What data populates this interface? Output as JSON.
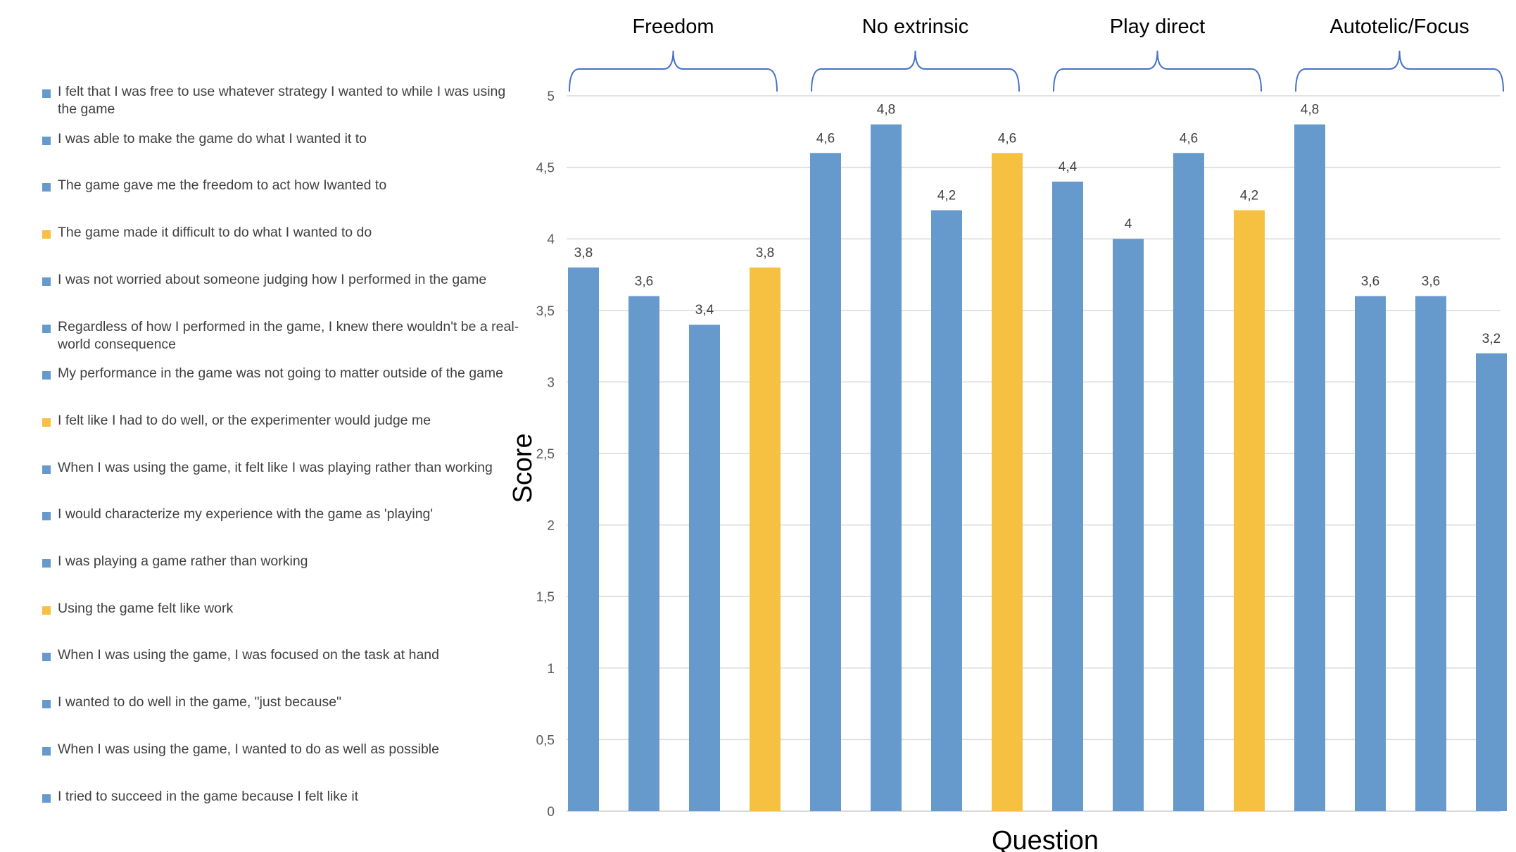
{
  "chart_data": {
    "type": "bar",
    "xlabel": "Question",
    "ylabel": "Score",
    "ylim": [
      0,
      5
    ],
    "yticks": [
      "0",
      "0,5",
      "1",
      "1,5",
      "2",
      "2,5",
      "3",
      "3,5",
      "4",
      "4,5",
      "5"
    ],
    "grid": true,
    "legend_position": "left",
    "colors": {
      "positive": "#6699CC",
      "negative": "#F6C040"
    },
    "groups": [
      {
        "label": "Freedom",
        "start": 0,
        "end": 3
      },
      {
        "label": "No extrinsic",
        "start": 4,
        "end": 7
      },
      {
        "label": "Play direct",
        "start": 8,
        "end": 11
      },
      {
        "label": "Autotelic/Focus",
        "start": 12,
        "end": 15
      }
    ],
    "items": [
      {
        "label": "I felt that I was free to use whatever strategy I wanted to while I was using the game",
        "value": 3.8,
        "value_label": "3,8",
        "color": "#6699CC"
      },
      {
        "label": "I was able to make the game do what I wanted it to",
        "value": 3.6,
        "value_label": "3,6",
        "color": "#6699CC"
      },
      {
        "label": "The game gave me the freedom to act how Iwanted to",
        "value": 3.4,
        "value_label": "3,4",
        "color": "#6699CC"
      },
      {
        "label": "The game made it difficult to do what I wanted to do",
        "value": 3.8,
        "value_label": "3,8",
        "color": "#F6C040"
      },
      {
        "label": "I was not worried about someone judging how I performed in the game",
        "value": 4.6,
        "value_label": "4,6",
        "color": "#6699CC"
      },
      {
        "label": "Regardless of how I performed in the game, I knew there wouldn't be a real-world consequence",
        "value": 4.8,
        "value_label": "4,8",
        "color": "#6699CC"
      },
      {
        "label": "My performance in the game was not going to matter outside of the game",
        "value": 4.2,
        "value_label": "4,2",
        "color": "#6699CC"
      },
      {
        "label": "I felt like I had to do well, or the experimenter would judge me",
        "value": 4.6,
        "value_label": "4,6",
        "color": "#F6C040"
      },
      {
        "label": "When I was using the game, it felt like I was playing rather than working",
        "value": 4.4,
        "value_label": "4,4",
        "color": "#6699CC"
      },
      {
        "label": "I would characterize my experience with the game as 'playing'",
        "value": 4.0,
        "value_label": "4",
        "color": "#6699CC"
      },
      {
        "label": "I was playing a game rather than working",
        "value": 4.6,
        "value_label": "4,6",
        "color": "#6699CC"
      },
      {
        "label": "Using the game felt like work",
        "value": 4.2,
        "value_label": "4,2",
        "color": "#F6C040"
      },
      {
        "label": "When I was using the game, I was focused on the task at hand",
        "value": 4.8,
        "value_label": "4,8",
        "color": "#6699CC"
      },
      {
        "label": "I wanted to do well in the game, \"just because\"",
        "value": 3.6,
        "value_label": "3,6",
        "color": "#6699CC"
      },
      {
        "label": "When I was using the game, I wanted to do as well as possible",
        "value": 3.6,
        "value_label": "3,6",
        "color": "#6699CC"
      },
      {
        "label": "I tried to succeed in the game because I felt like it",
        "value": 3.2,
        "value_label": "3,2",
        "color": "#6699CC"
      }
    ]
  }
}
